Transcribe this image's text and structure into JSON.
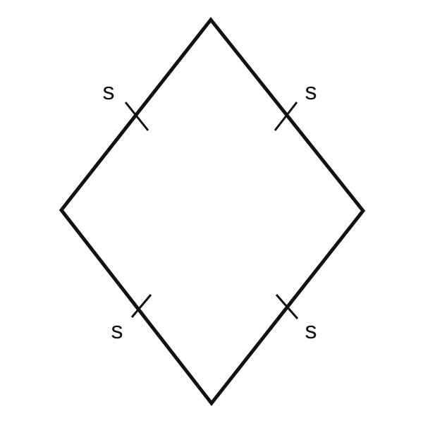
{
  "diagram": {
    "shape": "rhombus",
    "stroke_color": "#111111",
    "sides": [
      {
        "label": "s"
      },
      {
        "label": "s"
      },
      {
        "label": "s"
      },
      {
        "label": "s"
      }
    ]
  }
}
